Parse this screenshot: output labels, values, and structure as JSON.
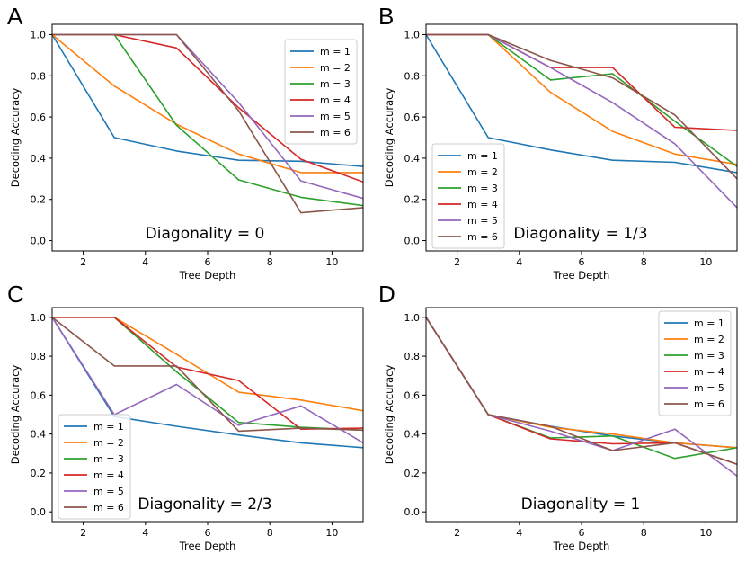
{
  "series_names": [
    "m = 1",
    "m = 2",
    "m = 3",
    "m = 4",
    "m = 5",
    "m = 6"
  ],
  "series_colors": [
    "#1f77b4",
    "#ff7f0e",
    "#2ca02c",
    "#d62728",
    "#9467bd",
    "#8c564b"
  ],
  "chart_data": [
    {
      "type": "line",
      "panel": "A",
      "annotation": "Diagonality = 0",
      "xlabel": "Tree Depth",
      "ylabel": "Decoding Accuracy",
      "xlim": [
        1,
        11
      ],
      "ylim": [
        -0.05,
        1.05
      ],
      "xticks": [
        2,
        4,
        6,
        8,
        10
      ],
      "yticks": [
        "0.0",
        "0.2",
        "0.4",
        "0.6",
        "0.8",
        "1.0"
      ],
      "legend": "top-right",
      "x": [
        1,
        3,
        5,
        7,
        9,
        11
      ],
      "series": [
        {
          "name": "m = 1",
          "values": [
            1.0,
            0.5,
            0.435,
            0.39,
            0.385,
            0.36
          ]
        },
        {
          "name": "m = 2",
          "values": [
            1.0,
            0.75,
            0.565,
            0.42,
            0.33,
            0.33
          ]
        },
        {
          "name": "m = 3",
          "values": [
            1.0,
            1.0,
            0.56,
            0.295,
            0.21,
            0.17
          ]
        },
        {
          "name": "m = 4",
          "values": [
            1.0,
            1.0,
            0.935,
            0.645,
            0.395,
            0.285
          ]
        },
        {
          "name": "m = 5",
          "values": [
            1.0,
            1.0,
            1.0,
            0.67,
            0.29,
            0.205
          ]
        },
        {
          "name": "m = 6",
          "values": [
            1.0,
            1.0,
            1.0,
            0.63,
            0.135,
            0.16
          ]
        }
      ]
    },
    {
      "type": "line",
      "panel": "B",
      "annotation": "Diagonality = 1/3",
      "xlabel": "Tree Depth",
      "ylabel": "Decoding Accuracy",
      "xlim": [
        1,
        11
      ],
      "ylim": [
        -0.05,
        1.05
      ],
      "xticks": [
        2,
        4,
        6,
        8,
        10
      ],
      "yticks": [
        "0.0",
        "0.2",
        "0.4",
        "0.6",
        "0.8",
        "1.0"
      ],
      "legend": "bottom-left",
      "x": [
        1,
        3,
        5,
        7,
        9,
        11
      ],
      "series": [
        {
          "name": "m = 1",
          "values": [
            1.0,
            0.5,
            0.44,
            0.39,
            0.38,
            0.33
          ]
        },
        {
          "name": "m = 2",
          "values": [
            1.0,
            1.0,
            0.72,
            0.53,
            0.42,
            0.37
          ]
        },
        {
          "name": "m = 3",
          "values": [
            1.0,
            1.0,
            0.78,
            0.81,
            0.58,
            0.36
          ]
        },
        {
          "name": "m = 4",
          "values": [
            1.0,
            1.0,
            0.84,
            0.84,
            0.55,
            0.535
          ]
        },
        {
          "name": "m = 5",
          "values": [
            1.0,
            1.0,
            0.84,
            0.67,
            0.47,
            0.16
          ]
        },
        {
          "name": "m = 6",
          "values": [
            1.0,
            1.0,
            0.875,
            0.79,
            0.61,
            0.3
          ]
        }
      ]
    },
    {
      "type": "line",
      "panel": "C",
      "annotation": "Diagonality = 2/3",
      "xlabel": "Tree Depth",
      "ylabel": "Decoding Accuracy",
      "xlim": [
        1,
        11
      ],
      "ylim": [
        -0.05,
        1.05
      ],
      "xticks": [
        2,
        4,
        6,
        8,
        10
      ],
      "yticks": [
        "0.0",
        "0.2",
        "0.4",
        "0.6",
        "0.8",
        "1.0"
      ],
      "legend": "bottom-left",
      "x": [
        1,
        3,
        5,
        7,
        9,
        11
      ],
      "series": [
        {
          "name": "m = 1",
          "values": [
            1.0,
            0.49,
            0.44,
            0.395,
            0.355,
            0.33
          ]
        },
        {
          "name": "m = 2",
          "values": [
            1.0,
            1.0,
            0.81,
            0.615,
            0.575,
            0.52
          ]
        },
        {
          "name": "m = 3",
          "values": [
            1.0,
            1.0,
            0.72,
            0.46,
            0.435,
            0.42
          ]
        },
        {
          "name": "m = 4",
          "values": [
            1.0,
            1.0,
            0.745,
            0.675,
            0.425,
            0.43
          ]
        },
        {
          "name": "m = 5",
          "values": [
            1.0,
            0.5,
            0.655,
            0.445,
            0.545,
            0.355
          ]
        },
        {
          "name": "m = 6",
          "values": [
            1.0,
            0.75,
            0.75,
            0.415,
            0.43,
            0.42
          ]
        }
      ]
    },
    {
      "type": "line",
      "panel": "D",
      "annotation": "Diagonality = 1",
      "xlabel": "Tree Depth",
      "ylabel": "Decoding Accuracy",
      "xlim": [
        1,
        11
      ],
      "ylim": [
        -0.05,
        1.05
      ],
      "xticks": [
        2,
        4,
        6,
        8,
        10
      ],
      "yticks": [
        "0.0",
        "0.2",
        "0.4",
        "0.6",
        "0.8",
        "1.0"
      ],
      "legend": "top-right",
      "x": [
        1,
        3,
        5,
        7,
        9,
        11
      ],
      "series": [
        {
          "name": "m = 1",
          "values": [
            1.0,
            0.5,
            0.44,
            0.39,
            0.355,
            0.33
          ]
        },
        {
          "name": "m = 2",
          "values": [
            1.0,
            0.5,
            0.435,
            0.4,
            0.355,
            0.33
          ]
        },
        {
          "name": "m = 3",
          "values": [
            1.0,
            0.5,
            0.38,
            0.39,
            0.275,
            0.33
          ]
        },
        {
          "name": "m = 4",
          "values": [
            1.0,
            0.5,
            0.375,
            0.35,
            0.355,
            0.245
          ]
        },
        {
          "name": "m = 5",
          "values": [
            1.0,
            0.5,
            0.415,
            0.315,
            0.425,
            0.185
          ]
        },
        {
          "name": "m = 6",
          "values": [
            1.0,
            0.5,
            0.44,
            0.315,
            0.355,
            0.245
          ]
        }
      ]
    }
  ]
}
